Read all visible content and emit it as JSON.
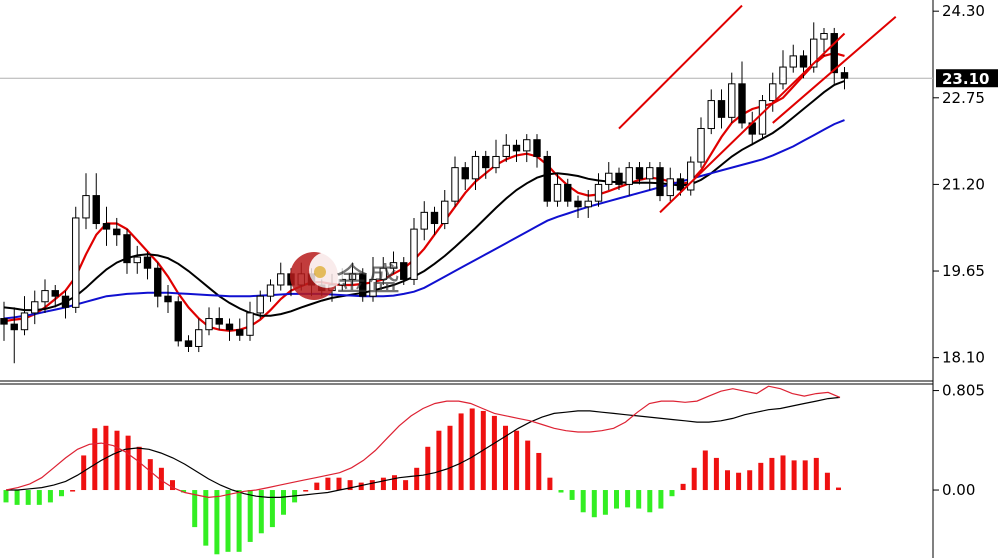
{
  "chart_data": [
    {
      "type": "candlestick",
      "panel": "price",
      "y_ticks": [
        "24.30",
        "22.75",
        "21.20",
        "19.65",
        "18.10"
      ],
      "y_tick_values": [
        24.3,
        22.75,
        21.2,
        19.65,
        18.1
      ],
      "ylim": [
        17.7,
        24.5
      ],
      "current_price_label": "23.10",
      "current_price": 23.1,
      "watermark_text": "金盛",
      "colors": {
        "up_body": "#ffffff",
        "down_body": "#000000",
        "ma_short": "#e00000",
        "ma_mid": "#000000",
        "ma_long": "#1010d0",
        "trendline": "#e00000",
        "current_price_line": "#b0b0b0"
      },
      "candles": [
        [
          18.8,
          18.7,
          19.1,
          18.4
        ],
        [
          18.7,
          18.6,
          19.0,
          18.0
        ],
        [
          18.6,
          18.9,
          19.2,
          18.5
        ],
        [
          18.9,
          19.1,
          19.3,
          18.7
        ],
        [
          19.1,
          19.3,
          19.5,
          18.9
        ],
        [
          19.3,
          19.2,
          19.4,
          19.0
        ],
        [
          19.2,
          19.0,
          19.3,
          18.8
        ],
        [
          19.0,
          20.6,
          20.8,
          18.9
        ],
        [
          20.6,
          21.0,
          21.4,
          20.4
        ],
        [
          21.0,
          20.5,
          21.4,
          20.4
        ],
        [
          20.5,
          20.4,
          20.8,
          20.1
        ],
        [
          20.4,
          20.3,
          20.6,
          20.1
        ],
        [
          20.3,
          19.8,
          20.4,
          19.6
        ],
        [
          19.8,
          19.9,
          20.1,
          19.6
        ],
        [
          19.9,
          19.7,
          20.0,
          19.5
        ],
        [
          19.7,
          19.2,
          19.8,
          19.0
        ],
        [
          19.2,
          19.1,
          19.4,
          18.9
        ],
        [
          19.1,
          18.4,
          19.2,
          18.3
        ],
        [
          18.4,
          18.3,
          18.5,
          18.2
        ],
        [
          18.3,
          18.6,
          18.8,
          18.2
        ],
        [
          18.6,
          18.8,
          19.0,
          18.5
        ],
        [
          18.8,
          18.7,
          19.0,
          18.6
        ],
        [
          18.7,
          18.6,
          18.8,
          18.4
        ],
        [
          18.6,
          18.5,
          18.8,
          18.4
        ],
        [
          18.5,
          18.9,
          19.1,
          18.4
        ],
        [
          18.9,
          19.2,
          19.3,
          18.8
        ],
        [
          19.2,
          19.4,
          19.5,
          19.1
        ],
        [
          19.4,
          19.6,
          19.8,
          19.3
        ],
        [
          19.6,
          19.4,
          19.7,
          19.2
        ],
        [
          19.4,
          19.6,
          19.8,
          19.3
        ],
        [
          19.6,
          19.4,
          19.7,
          19.2
        ],
        [
          19.4,
          19.3,
          19.5,
          19.2
        ],
        [
          19.3,
          19.4,
          19.6,
          19.1
        ],
        [
          19.4,
          19.5,
          19.7,
          19.3
        ],
        [
          19.5,
          19.6,
          19.8,
          19.4
        ],
        [
          19.6,
          19.2,
          19.7,
          19.1
        ],
        [
          19.2,
          19.5,
          19.9,
          19.1
        ],
        [
          19.5,
          19.7,
          19.9,
          19.4
        ],
        [
          19.7,
          19.8,
          20.0,
          19.6
        ],
        [
          19.8,
          19.5,
          19.9,
          19.4
        ],
        [
          19.5,
          20.4,
          20.6,
          19.4
        ],
        [
          20.4,
          20.7,
          20.9,
          20.2
        ],
        [
          20.7,
          20.5,
          20.8,
          20.3
        ],
        [
          20.5,
          20.9,
          21.1,
          20.4
        ],
        [
          20.9,
          21.5,
          21.7,
          20.8
        ],
        [
          21.5,
          21.3,
          21.6,
          21.1
        ],
        [
          21.3,
          21.7,
          21.8,
          21.1
        ],
        [
          21.7,
          21.5,
          21.8,
          21.3
        ],
        [
          21.5,
          21.7,
          22.0,
          21.4
        ],
        [
          21.7,
          21.9,
          22.1,
          21.6
        ],
        [
          21.9,
          21.8,
          22.0,
          21.6
        ],
        [
          21.8,
          22.0,
          22.1,
          21.6
        ],
        [
          22.0,
          21.7,
          22.1,
          21.5
        ],
        [
          21.7,
          20.9,
          21.8,
          20.8
        ],
        [
          20.9,
          21.2,
          21.4,
          20.8
        ],
        [
          21.2,
          20.9,
          21.3,
          20.8
        ],
        [
          20.9,
          20.8,
          21.0,
          20.6
        ],
        [
          20.8,
          20.9,
          21.1,
          20.6
        ],
        [
          20.9,
          21.2,
          21.4,
          20.8
        ],
        [
          21.2,
          21.4,
          21.6,
          21.1
        ],
        [
          21.4,
          21.2,
          21.5,
          21.1
        ],
        [
          21.2,
          21.5,
          21.6,
          21.0
        ],
        [
          21.5,
          21.3,
          21.6,
          21.2
        ],
        [
          21.3,
          21.5,
          21.6,
          21.1
        ],
        [
          21.5,
          21.0,
          21.6,
          20.9
        ],
        [
          21.0,
          21.3,
          21.5,
          20.9
        ],
        [
          21.3,
          21.1,
          21.4,
          21.0
        ],
        [
          21.1,
          21.6,
          21.7,
          21.0
        ],
        [
          21.6,
          22.2,
          22.4,
          21.5
        ],
        [
          22.2,
          22.7,
          22.9,
          22.1
        ],
        [
          22.7,
          22.4,
          22.9,
          22.2
        ],
        [
          22.4,
          23.0,
          23.2,
          22.3
        ],
        [
          23.0,
          22.3,
          23.4,
          22.2
        ],
        [
          22.3,
          22.1,
          22.5,
          21.9
        ],
        [
          22.1,
          22.7,
          22.8,
          22.0
        ],
        [
          22.7,
          23.0,
          23.2,
          22.5
        ],
        [
          23.0,
          23.3,
          23.6,
          22.9
        ],
        [
          23.3,
          23.5,
          23.7,
          23.2
        ],
        [
          23.5,
          23.3,
          23.6,
          23.1
        ],
        [
          23.3,
          23.8,
          24.1,
          23.2
        ],
        [
          23.8,
          23.9,
          24.0,
          23.5
        ],
        [
          23.9,
          23.2,
          24.0,
          23.0
        ],
        [
          23.2,
          23.1,
          23.3,
          22.9
        ]
      ],
      "series": [
        {
          "name": "",
          "key": "ma_short",
          "values": [
            18.75,
            18.78,
            18.8,
            18.88,
            19.0,
            19.15,
            19.3,
            19.55,
            19.95,
            20.3,
            20.5,
            20.5,
            20.4,
            20.2,
            20.0,
            19.8,
            19.55,
            19.25,
            19.0,
            18.8,
            18.65,
            18.6,
            18.58,
            18.6,
            18.66,
            18.78,
            18.95,
            19.15,
            19.3,
            19.38,
            19.45,
            19.45,
            19.42,
            19.4,
            19.4,
            19.42,
            19.45,
            19.5,
            19.6,
            19.7,
            19.85,
            20.05,
            20.3,
            20.55,
            20.8,
            21.05,
            21.25,
            21.4,
            21.55,
            21.65,
            21.72,
            21.75,
            21.7,
            21.55,
            21.35,
            21.18,
            21.05,
            21.0,
            21.02,
            21.08,
            21.15,
            21.22,
            21.28,
            21.32,
            21.3,
            21.25,
            21.2,
            21.25,
            21.45,
            21.75,
            22.05,
            22.3,
            22.45,
            22.55,
            22.6,
            22.65,
            22.75,
            22.95,
            23.15,
            23.35,
            23.5,
            23.55,
            23.5
          ]
        },
        {
          "name": "",
          "key": "ma_mid",
          "values": [
            19.0,
            18.98,
            18.95,
            18.95,
            18.97,
            19.02,
            19.1,
            19.2,
            19.35,
            19.52,
            19.68,
            19.8,
            19.88,
            19.93,
            19.95,
            19.93,
            19.88,
            19.78,
            19.65,
            19.5,
            19.35,
            19.2,
            19.08,
            18.98,
            18.9,
            18.85,
            18.85,
            18.88,
            18.93,
            19.0,
            19.06,
            19.12,
            19.17,
            19.2,
            19.23,
            19.26,
            19.3,
            19.35,
            19.4,
            19.47,
            19.55,
            19.65,
            19.78,
            19.92,
            20.08,
            20.25,
            20.42,
            20.6,
            20.78,
            20.95,
            21.1,
            21.22,
            21.32,
            21.38,
            21.4,
            21.38,
            21.35,
            21.3,
            21.27,
            21.25,
            21.24,
            21.23,
            21.23,
            21.23,
            21.22,
            21.2,
            21.18,
            21.2,
            21.28,
            21.4,
            21.55,
            21.7,
            21.82,
            21.92,
            22.02,
            22.12,
            22.25,
            22.4,
            22.55,
            22.7,
            22.85,
            22.98,
            23.05
          ]
        },
        {
          "name": "",
          "key": "ma_long",
          "values": [
            18.8,
            18.82,
            18.85,
            18.88,
            18.92,
            18.96,
            19.0,
            19.05,
            19.1,
            19.15,
            19.2,
            19.22,
            19.24,
            19.25,
            19.26,
            19.26,
            19.26,
            19.25,
            19.24,
            19.23,
            19.22,
            19.21,
            19.2,
            19.2,
            19.2,
            19.21,
            19.22,
            19.23,
            19.24,
            19.24,
            19.24,
            19.24,
            19.23,
            19.22,
            19.21,
            19.2,
            19.2,
            19.2,
            19.21,
            19.24,
            19.28,
            19.35,
            19.45,
            19.55,
            19.65,
            19.75,
            19.85,
            19.95,
            20.05,
            20.15,
            20.25,
            20.35,
            20.45,
            20.55,
            20.62,
            20.68,
            20.74,
            20.8,
            20.85,
            20.9,
            20.95,
            21.0,
            21.05,
            21.1,
            21.15,
            21.2,
            21.25,
            21.3,
            21.35,
            21.4,
            21.45,
            21.5,
            21.55,
            21.6,
            21.65,
            21.72,
            21.8,
            21.88,
            21.98,
            22.08,
            22.18,
            22.28,
            22.35
          ]
        }
      ],
      "trendlines": [
        {
          "from": [
            60,
            22.2
          ],
          "to": [
            72,
            24.4
          ]
        },
        {
          "from": [
            64,
            20.7
          ],
          "to": [
            82,
            23.9
          ]
        },
        {
          "from": [
            75,
            22.3
          ],
          "to": [
            87,
            24.2
          ]
        }
      ]
    },
    {
      "type": "bar+line",
      "panel": "macd",
      "y_ticks": [
        "0.805",
        "0.00"
      ],
      "y_tick_values": [
        0.805,
        0.0
      ],
      "ylim": [
        -0.55,
        0.85
      ],
      "colors": {
        "positive_bar": "#ee1111",
        "negative_bar": "#33ee22",
        "signal_line": "#000000",
        "macd_line": "#dd2233"
      },
      "histogram": [
        -0.1,
        -0.12,
        -0.12,
        -0.12,
        -0.1,
        -0.05,
        0.0,
        0.28,
        0.5,
        0.52,
        0.48,
        0.44,
        0.35,
        0.25,
        0.18,
        0.08,
        -0.02,
        -0.3,
        -0.45,
        -0.52,
        -0.5,
        -0.5,
        -0.42,
        -0.35,
        -0.3,
        -0.2,
        -0.1,
        0.0,
        0.06,
        0.1,
        0.1,
        0.08,
        0.06,
        0.08,
        0.1,
        0.12,
        0.08,
        0.18,
        0.35,
        0.48,
        0.52,
        0.62,
        0.66,
        0.64,
        0.6,
        0.52,
        0.48,
        0.4,
        0.3,
        0.1,
        -0.02,
        -0.08,
        -0.18,
        -0.22,
        -0.2,
        -0.15,
        -0.14,
        -0.15,
        -0.18,
        -0.15,
        -0.05,
        0.05,
        0.18,
        0.32,
        0.26,
        0.16,
        0.14,
        0.16,
        0.22,
        0.26,
        0.28,
        0.24,
        0.24,
        0.26,
        0.14,
        0.02
      ],
      "signal_line": [
        0.0,
        0.0,
        0.01,
        0.02,
        0.04,
        0.07,
        0.12,
        0.18,
        0.24,
        0.29,
        0.33,
        0.34,
        0.33,
        0.3,
        0.26,
        0.21,
        0.15,
        0.09,
        0.04,
        0.0,
        -0.03,
        -0.05,
        -0.06,
        -0.06,
        -0.05,
        -0.04,
        -0.03,
        -0.02,
        0.0,
        0.02,
        0.04,
        0.06,
        0.08,
        0.1,
        0.11,
        0.12,
        0.14,
        0.17,
        0.21,
        0.26,
        0.32,
        0.38,
        0.44,
        0.5,
        0.55,
        0.59,
        0.62,
        0.63,
        0.64,
        0.64,
        0.63,
        0.62,
        0.61,
        0.6,
        0.59,
        0.58,
        0.57,
        0.56,
        0.55,
        0.55,
        0.56,
        0.58,
        0.61,
        0.63,
        0.65,
        0.66,
        0.68,
        0.7,
        0.72,
        0.74,
        0.75
      ],
      "macd_line": [
        0.0,
        0.02,
        0.05,
        0.1,
        0.18,
        0.26,
        0.33,
        0.37,
        0.38,
        0.36,
        0.31,
        0.24,
        0.16,
        0.08,
        0.02,
        -0.02,
        -0.04,
        -0.06,
        -0.05,
        -0.03,
        -0.01,
        0.0,
        0.02,
        0.04,
        0.06,
        0.08,
        0.1,
        0.12,
        0.14,
        0.18,
        0.24,
        0.32,
        0.42,
        0.52,
        0.6,
        0.66,
        0.7,
        0.72,
        0.72,
        0.7,
        0.66,
        0.62,
        0.6,
        0.58,
        0.56,
        0.53,
        0.5,
        0.48,
        0.47,
        0.47,
        0.48,
        0.5,
        0.55,
        0.63,
        0.7,
        0.72,
        0.72,
        0.71,
        0.72,
        0.76,
        0.8,
        0.82,
        0.8,
        0.78,
        0.84,
        0.82,
        0.78,
        0.76,
        0.78,
        0.79,
        0.75
      ]
    }
  ]
}
